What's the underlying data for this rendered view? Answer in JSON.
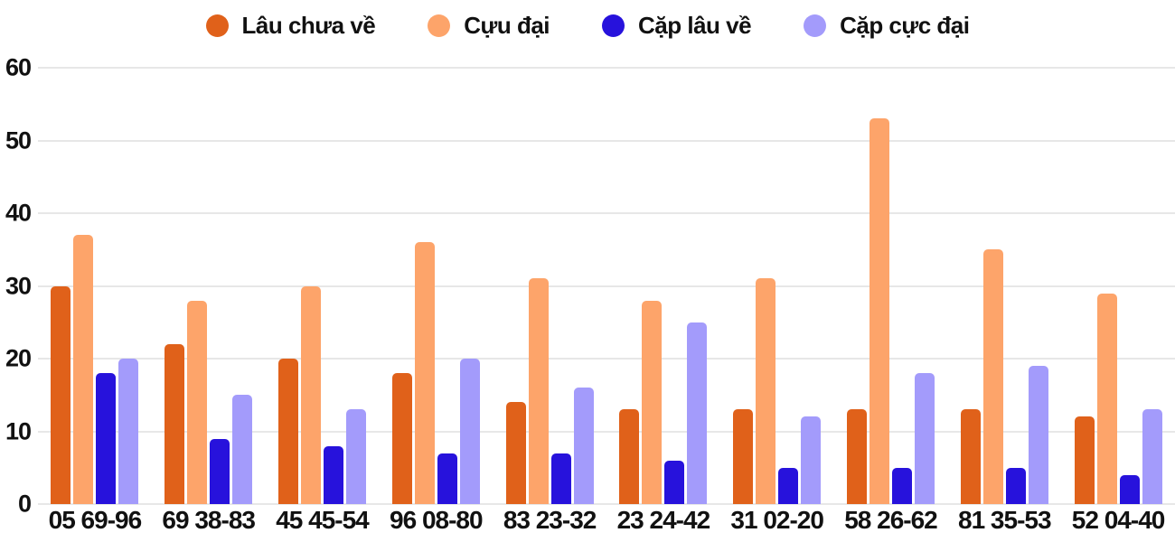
{
  "chart_data": {
    "type": "bar",
    "title": "",
    "xlabel": "",
    "ylabel": "",
    "categories": [
      "05 69-96",
      "69 38-83",
      "45 45-54",
      "96 08-80",
      "83 23-32",
      "23 24-42",
      "31 02-20",
      "58 26-62",
      "81 35-53",
      "52 04-40"
    ],
    "series": [
      {
        "name": "Lâu chưa về",
        "color": "#e0611a",
        "values": [
          30,
          22,
          20,
          18,
          14,
          13,
          13,
          13,
          13,
          12
        ]
      },
      {
        "name": "Cựu đại",
        "color": "#fda46a",
        "values": [
          37,
          28,
          30,
          36,
          31,
          28,
          31,
          53,
          35,
          29
        ]
      },
      {
        "name": "Cặp lâu về",
        "color": "#2712dc",
        "values": [
          18,
          9,
          8,
          7,
          7,
          6,
          5,
          5,
          5,
          4
        ]
      },
      {
        "name": "Cặp cực đại",
        "color": "#a39bfb",
        "values": [
          20,
          15,
          13,
          20,
          16,
          25,
          12,
          18,
          19,
          13
        ]
      }
    ],
    "ylim": [
      0,
      60
    ],
    "ytick_interval": 10,
    "yticks": [
      0,
      10,
      20,
      30,
      40,
      50,
      60
    ],
    "grid": true,
    "legend_position": "top-center"
  },
  "colors": {
    "gridline": "#e7e7e7",
    "text": "#111111",
    "background": "#ffffff"
  }
}
